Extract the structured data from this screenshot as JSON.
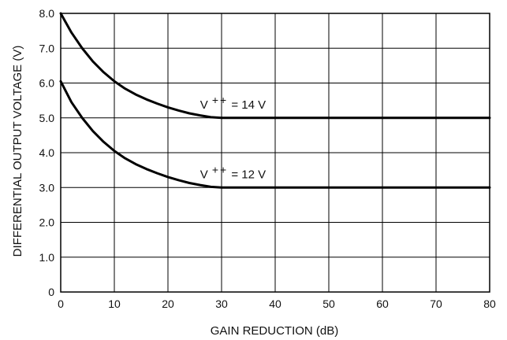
{
  "chart_data": {
    "type": "line",
    "title": "",
    "xlabel": "GAIN REDUCTION (dB)",
    "ylabel": "DIFFERENTIAL OUTPUT VOLTAGE (V)",
    "xlim": [
      0,
      80
    ],
    "ylim": [
      0,
      8
    ],
    "x_ticks": [
      "0",
      "10",
      "20",
      "30",
      "40",
      "50",
      "60",
      "70",
      "80"
    ],
    "y_ticks": [
      "0",
      "1.0",
      "2.0",
      "3.0",
      "4.0",
      "5.0",
      "6.0",
      "7.0",
      "8.0"
    ],
    "grid": true,
    "line_color": "#000000",
    "series": [
      {
        "x": [
          0,
          2,
          4,
          6,
          8,
          10,
          12,
          14,
          16,
          18,
          20,
          22,
          24,
          26,
          28,
          30,
          80
        ],
        "values": [
          8.0,
          7.45,
          7.0,
          6.62,
          6.31,
          6.05,
          5.84,
          5.67,
          5.53,
          5.41,
          5.3,
          5.21,
          5.13,
          5.07,
          5.02,
          5.0,
          5.0
        ],
        "annotation": {
          "base": "V",
          "sup": "++",
          "rest": " = 14 V",
          "x": 26,
          "y": 5.0
        }
      },
      {
        "x": [
          0,
          2,
          4,
          6,
          8,
          10,
          12,
          14,
          16,
          18,
          20,
          22,
          24,
          26,
          28,
          30,
          80
        ],
        "values": [
          6.05,
          5.45,
          5.0,
          4.62,
          4.31,
          4.05,
          3.84,
          3.67,
          3.53,
          3.41,
          3.3,
          3.21,
          3.13,
          3.07,
          3.02,
          3.0,
          3.0
        ],
        "annotation": {
          "base": "V",
          "sup": "++",
          "rest": " = 12 V",
          "x": 26,
          "y": 3.0
        }
      }
    ]
  }
}
